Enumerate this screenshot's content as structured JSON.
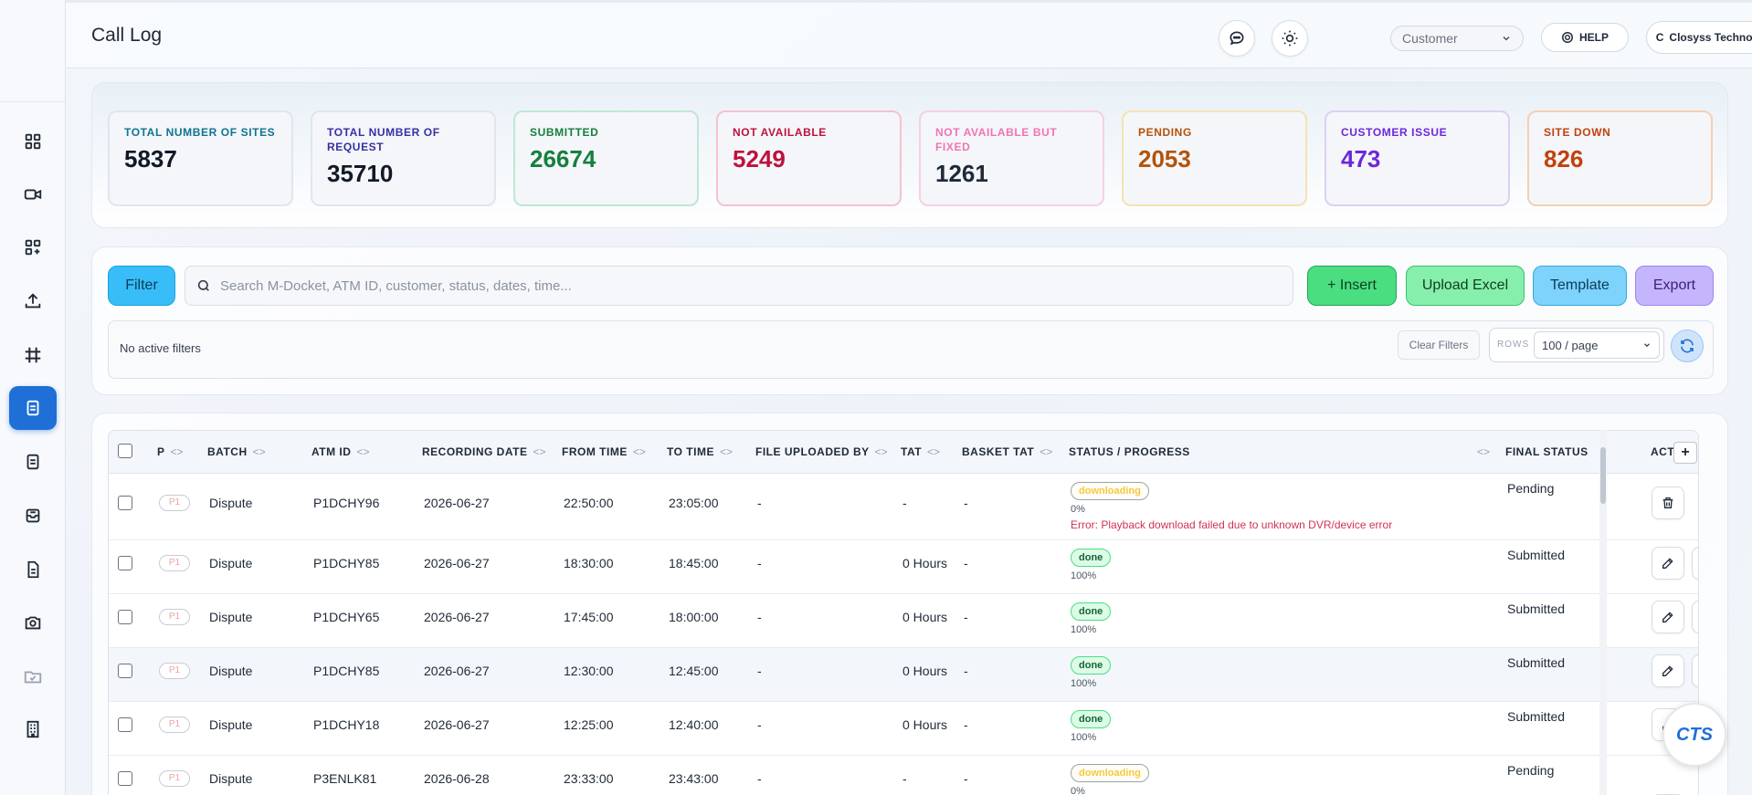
{
  "header": {
    "title": "Call Log",
    "customer_select": "Customer",
    "help_label": "HELP",
    "company_initial": "C",
    "company_name": "Closyss Technologies"
  },
  "sidebar": {
    "items": [
      {
        "icon": "dashboard-grid-icon"
      },
      {
        "icon": "video-camera-icon"
      },
      {
        "icon": "grid-add-icon"
      },
      {
        "icon": "upload-icon"
      },
      {
        "icon": "hash-grid-icon"
      },
      {
        "icon": "call-log-icon",
        "active": true
      },
      {
        "icon": "document-icon"
      },
      {
        "icon": "inbox-icon"
      },
      {
        "icon": "file-text-icon"
      },
      {
        "icon": "camera-icon"
      },
      {
        "icon": "folder-check-icon",
        "muted": true
      },
      {
        "icon": "building-icon"
      }
    ]
  },
  "stats": [
    {
      "label": "TOTAL NUMBER OF SITES",
      "value": "5837",
      "color": "#0e7490",
      "border": "#dfe6ee"
    },
    {
      "label": "TOTAL NUMBER OF REQUEST",
      "value": "35710",
      "color": "#3730a3",
      "border": "#dfe6ee"
    },
    {
      "label": "SUBMITTED",
      "value": "26674",
      "color": "#15803d",
      "border": "#bde8d4"
    },
    {
      "label": "NOT AVAILABLE",
      "value": "5249",
      "color": "#be123c",
      "border": "#f5c2d0"
    },
    {
      "label": "NOT AVAILABLE BUT FIXED",
      "value": "1261",
      "color": "#f472b6",
      "value_color": "#1f2937",
      "border": "#f5d0e6"
    },
    {
      "label": "PENDING",
      "value": "2053",
      "color": "#b45309",
      "border": "#f5e3b0"
    },
    {
      "label": "CUSTOMER ISSUE",
      "value": "473",
      "color": "#6d28d9",
      "border": "#dcd0f5"
    },
    {
      "label": "SITE DOWN",
      "value": "826",
      "color": "#c2410c",
      "border": "#f5cfb0"
    }
  ],
  "filters": {
    "filter_label": "Filter",
    "search_placeholder": "Search M-Docket, ATM ID, customer, status, dates, time...",
    "insert_label": "+ Insert",
    "upload_label": "Upload Excel",
    "template_label": "Template",
    "export_label": "Export",
    "no_filters": "No active filters",
    "clear_label": "Clear Filters",
    "rows_label": "ROWS",
    "rows_value": "100 / page"
  },
  "table": {
    "columns": [
      "P",
      "BATCH",
      "ATM ID",
      "RECORDING DATE",
      "FROM TIME",
      "TO TIME",
      "FILE UPLOADED BY",
      "TAT",
      "BASKET TAT",
      "STATUS / PROGRESS",
      "FINAL STATUS",
      "ACT"
    ],
    "sort_glyph": "<>",
    "rows": [
      {
        "p": "P1",
        "batch": "Dispute",
        "atm": "P1DCHY96",
        "date": "2026-06-27",
        "from": "22:50:00",
        "to": "23:05:00",
        "uploaded_by": "-",
        "tat": "-",
        "basket": "-",
        "status": "downloading",
        "pct": "0%",
        "error": "Error: Playback download failed due to unknown DVR/device error",
        "final": "Pending"
      },
      {
        "p": "P1",
        "batch": "Dispute",
        "atm": "P1DCHY85",
        "date": "2026-06-27",
        "from": "18:30:00",
        "to": "18:45:00",
        "uploaded_by": "-",
        "tat": "0 Hours",
        "basket": "-",
        "status": "done",
        "pct": "100%",
        "final": "Submitted"
      },
      {
        "p": "P1",
        "batch": "Dispute",
        "atm": "P1DCHY65",
        "date": "2026-06-27",
        "from": "17:45:00",
        "to": "18:00:00",
        "uploaded_by": "-",
        "tat": "0 Hours",
        "basket": "-",
        "status": "done",
        "pct": "100%",
        "final": "Submitted"
      },
      {
        "p": "P1",
        "batch": "Dispute",
        "atm": "P1DCHY85",
        "date": "2026-06-27",
        "from": "12:30:00",
        "to": "12:45:00",
        "uploaded_by": "-",
        "tat": "0 Hours",
        "basket": "-",
        "status": "done",
        "pct": "100%",
        "final": "Submitted"
      },
      {
        "p": "P1",
        "batch": "Dispute",
        "atm": "P1DCHY18",
        "date": "2026-06-27",
        "from": "12:25:00",
        "to": "12:40:00",
        "uploaded_by": "-",
        "tat": "0 Hours",
        "basket": "-",
        "status": "done",
        "pct": "100%",
        "final": "Submitted"
      },
      {
        "p": "P1",
        "batch": "Dispute",
        "atm": "P3ENLK81",
        "date": "2026-06-28",
        "from": "23:33:00",
        "to": "23:43:00",
        "uploaded_by": "-",
        "tat": "-",
        "basket": "-",
        "status": "downloading",
        "pct": "0%",
        "final": "Pending"
      }
    ]
  },
  "badge": {
    "logo_text": "CTS"
  }
}
